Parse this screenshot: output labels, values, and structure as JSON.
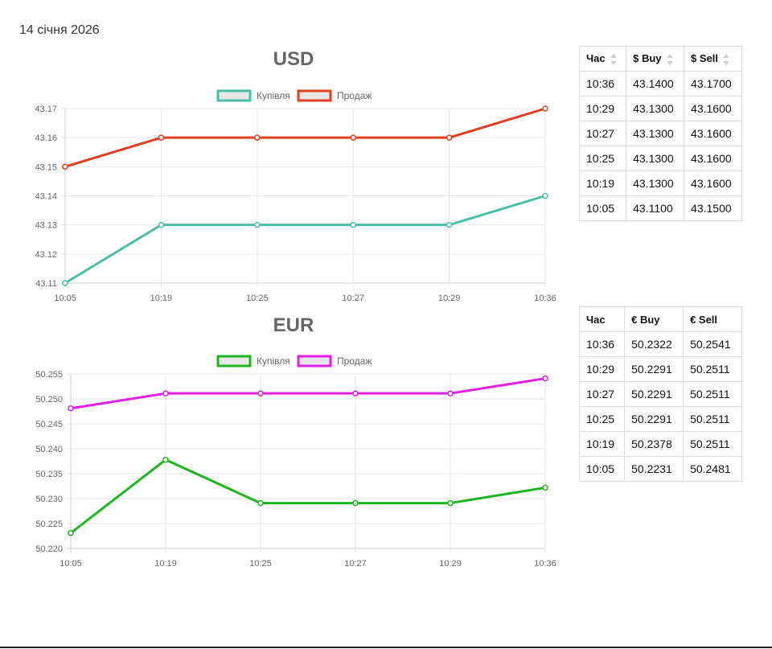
{
  "date": "14 січня 2026",
  "colors": {
    "usd_buy": "#4bbfa5",
    "usd_sell": "#e0401f",
    "eur_buy": "#1fb51f",
    "eur_sell": "#e21ee8"
  },
  "tables": {
    "usd": {
      "headers": [
        "Час",
        "$ Buy",
        "$ Sell"
      ],
      "rows": [
        [
          "10:36",
          "43.1400",
          "43.1700"
        ],
        [
          "10:29",
          "43.1300",
          "43.1600"
        ],
        [
          "10:27",
          "43.1300",
          "43.1600"
        ],
        [
          "10:25",
          "43.1300",
          "43.1600"
        ],
        [
          "10:19",
          "43.1300",
          "43.1600"
        ],
        [
          "10:05",
          "43.1100",
          "43.1500"
        ]
      ]
    },
    "eur": {
      "headers": [
        "Час",
        "€ Buy",
        "€ Sell"
      ],
      "rows": [
        [
          "10:36",
          "50.2322",
          "50.2541"
        ],
        [
          "10:29",
          "50.2291",
          "50.2511"
        ],
        [
          "10:27",
          "50.2291",
          "50.2511"
        ],
        [
          "10:25",
          "50.2291",
          "50.2511"
        ],
        [
          "10:19",
          "50.2378",
          "50.2511"
        ],
        [
          "10:05",
          "50.2231",
          "50.2481"
        ]
      ]
    }
  },
  "chart_data": [
    {
      "type": "line",
      "title": "USD",
      "categories": [
        "10:05",
        "10:19",
        "10:25",
        "10:27",
        "10:29",
        "10:36"
      ],
      "series": [
        {
          "name": "Купівля",
          "values": [
            43.11,
            43.13,
            43.13,
            43.13,
            43.13,
            43.14
          ]
        },
        {
          "name": "Продаж",
          "values": [
            43.15,
            43.16,
            43.16,
            43.16,
            43.16,
            43.17
          ]
        }
      ],
      "ylim": [
        43.11,
        43.17
      ],
      "yticks": [
        "43.11",
        "43.12",
        "43.13",
        "43.14",
        "43.15",
        "43.16",
        "43.17"
      ],
      "grid": true,
      "legend": "top-center"
    },
    {
      "type": "line",
      "title": "EUR",
      "categories": [
        "10:05",
        "10:19",
        "10:25",
        "10:27",
        "10:29",
        "10:36"
      ],
      "series": [
        {
          "name": "Купівля",
          "values": [
            50.2231,
            50.2378,
            50.2291,
            50.2291,
            50.2291,
            50.2322
          ]
        },
        {
          "name": "Продаж",
          "values": [
            50.2481,
            50.2511,
            50.2511,
            50.2511,
            50.2511,
            50.2541
          ]
        }
      ],
      "ylim": [
        50.22,
        50.255
      ],
      "yticks": [
        "50.220",
        "50.225",
        "50.230",
        "50.235",
        "50.240",
        "50.245",
        "50.250",
        "50.255"
      ],
      "grid": true,
      "legend": "top-center"
    }
  ]
}
